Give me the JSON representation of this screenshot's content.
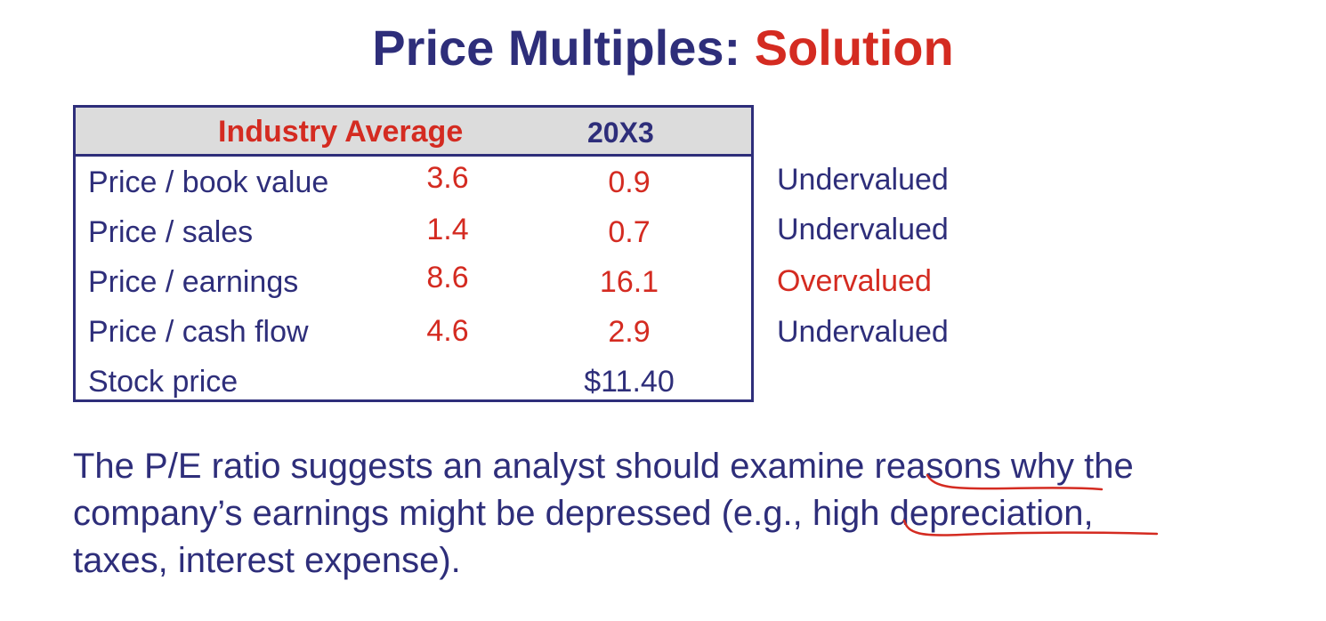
{
  "title": {
    "main": "Price Multiples: ",
    "accent": "Solution"
  },
  "table": {
    "header": {
      "industry_average": "Industry Average",
      "year": "20X3"
    },
    "rows": [
      {
        "label": "Price / book value",
        "industry": "3.6",
        "year": "0.9",
        "assessment": "Undervalued"
      },
      {
        "label": "Price / sales",
        "industry": "1.4",
        "year": "0.7",
        "assessment": "Undervalued"
      },
      {
        "label": "Price / earnings",
        "industry": "8.6",
        "year": "16.1",
        "assessment": "Overvalued"
      },
      {
        "label": "Price / cash flow",
        "industry": "4.6",
        "year": "2.9",
        "assessment": "Undervalued"
      },
      {
        "label": "Stock price",
        "industry": "",
        "year": "$11.40",
        "assessment": ""
      }
    ]
  },
  "paragraph": {
    "line1": "The P/E ratio suggests an analyst should examine reasons why the",
    "line2": "company’s earnings might be depressed (e.g., high depreciation,",
    "line3": "taxes, interest expense)."
  },
  "colors": {
    "navy": "#2e2e7a",
    "red": "#d42b21",
    "header_bg": "#dcdcdc"
  }
}
